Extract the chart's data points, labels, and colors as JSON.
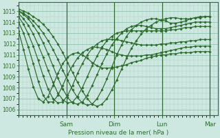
{
  "title": "",
  "xlabel": "Pression niveau de la mer( hPa )",
  "ylim": [
    1005.5,
    1015.8
  ],
  "yticks": [
    1006,
    1007,
    1008,
    1009,
    1010,
    1011,
    1012,
    1013,
    1014,
    1015
  ],
  "bg_color": "#cce8e0",
  "plot_bg_color": "#cce8e0",
  "grid_color_major": "#88bbaa",
  "grid_color_minor": "#aaccbb",
  "line_color": "#2d6b2d",
  "marker": "D",
  "markersize": 1.8,
  "linewidth": 0.9,
  "day_labels": [
    "Sam",
    "Dim",
    "Lun",
    "Mar"
  ],
  "day_positions": [
    0.25,
    0.5,
    0.75,
    1.0
  ],
  "xlim": [
    0.0,
    1.04
  ],
  "series": [
    [
      1015.2,
      1015.0,
      1014.8,
      1014.5,
      1014.2,
      1013.8,
      1013.3,
      1012.7,
      1012.0,
      1011.2,
      1010.3,
      1009.4,
      1008.5,
      1007.7,
      1007.0,
      1006.5,
      1006.3,
      1006.5,
      1007.0,
      1007.8,
      1008.7,
      1009.7,
      1010.7,
      1011.6,
      1012.3,
      1012.9,
      1013.4,
      1013.7,
      1014.0,
      1014.2,
      1014.3,
      1014.4,
      1014.4,
      1014.3,
      1014.3,
      1014.3,
      1014.4,
      1014.4,
      1014.5,
      1014.5
    ],
    [
      1015.0,
      1014.8,
      1014.5,
      1014.1,
      1013.6,
      1013.0,
      1012.3,
      1011.5,
      1010.6,
      1009.6,
      1008.7,
      1007.8,
      1007.1,
      1006.6,
      1006.4,
      1006.5,
      1007.0,
      1007.8,
      1008.8,
      1009.9,
      1011.0,
      1011.9,
      1012.7,
      1013.3,
      1013.7,
      1014.0,
      1014.2,
      1014.3,
      1014.3,
      1014.2,
      1014.1,
      1013.9,
      1013.9,
      1014.0,
      1014.1,
      1014.3,
      1014.4,
      1014.5,
      1014.5,
      1014.5
    ],
    [
      1015.0,
      1014.7,
      1014.3,
      1013.7,
      1013.0,
      1012.1,
      1011.1,
      1010.0,
      1008.9,
      1007.9,
      1007.1,
      1006.6,
      1006.5,
      1006.7,
      1007.3,
      1008.2,
      1009.2,
      1010.2,
      1011.1,
      1011.9,
      1012.5,
      1013.0,
      1013.4,
      1013.6,
      1013.7,
      1013.7,
      1013.6,
      1013.5,
      1013.4,
      1013.4,
      1013.4,
      1013.5,
      1013.6,
      1013.7,
      1013.8,
      1013.9,
      1014.0,
      1014.0,
      1014.0,
      1014.0
    ],
    [
      1014.8,
      1014.3,
      1013.7,
      1012.9,
      1011.9,
      1010.8,
      1009.6,
      1008.5,
      1007.5,
      1006.9,
      1006.6,
      1006.7,
      1007.2,
      1008.0,
      1009.0,
      1010.0,
      1010.9,
      1011.7,
      1012.3,
      1012.7,
      1013.0,
      1013.1,
      1013.2,
      1013.2,
      1013.2,
      1013.2,
      1013.2,
      1013.2,
      1013.2,
      1013.2,
      1013.2,
      1013.3,
      1013.3,
      1013.4,
      1013.5,
      1013.5,
      1013.6,
      1013.6,
      1013.6,
      1013.6
    ],
    [
      1014.5,
      1013.8,
      1012.9,
      1011.8,
      1010.5,
      1009.1,
      1007.9,
      1007.0,
      1006.6,
      1006.7,
      1007.3,
      1008.2,
      1009.3,
      1010.2,
      1011.0,
      1011.6,
      1012.0,
      1012.3,
      1012.4,
      1012.4,
      1012.4,
      1012.3,
      1012.2,
      1012.1,
      1012.0,
      1011.9,
      1011.9,
      1011.9,
      1011.9,
      1012.0,
      1012.0,
      1012.1,
      1012.1,
      1012.2,
      1012.2,
      1012.3,
      1012.3,
      1012.4,
      1012.4,
      1012.4
    ],
    [
      1014.0,
      1013.0,
      1011.7,
      1010.2,
      1008.6,
      1007.3,
      1006.7,
      1006.7,
      1007.3,
      1008.2,
      1009.2,
      1010.0,
      1010.7,
      1011.2,
      1011.5,
      1011.7,
      1011.7,
      1011.6,
      1011.5,
      1011.3,
      1011.1,
      1011.0,
      1010.9,
      1010.9,
      1010.9,
      1010.9,
      1011.0,
      1011.0,
      1011.1,
      1011.2,
      1011.3,
      1011.4,
      1011.5,
      1011.6,
      1011.7,
      1011.7,
      1011.8,
      1011.8,
      1011.8,
      1011.8
    ],
    [
      1013.2,
      1011.5,
      1009.7,
      1008.1,
      1007.0,
      1006.7,
      1007.2,
      1008.2,
      1009.3,
      1010.2,
      1010.8,
      1011.1,
      1011.2,
      1011.0,
      1010.7,
      1010.3,
      1010.0,
      1009.8,
      1009.8,
      1009.8,
      1009.9,
      1010.0,
      1010.1,
      1010.3,
      1010.4,
      1010.5,
      1010.7,
      1010.8,
      1010.9,
      1011.0,
      1011.0,
      1011.1,
      1011.1,
      1011.2,
      1011.2,
      1011.2,
      1011.3,
      1011.3,
      1011.3,
      1011.3
    ]
  ]
}
